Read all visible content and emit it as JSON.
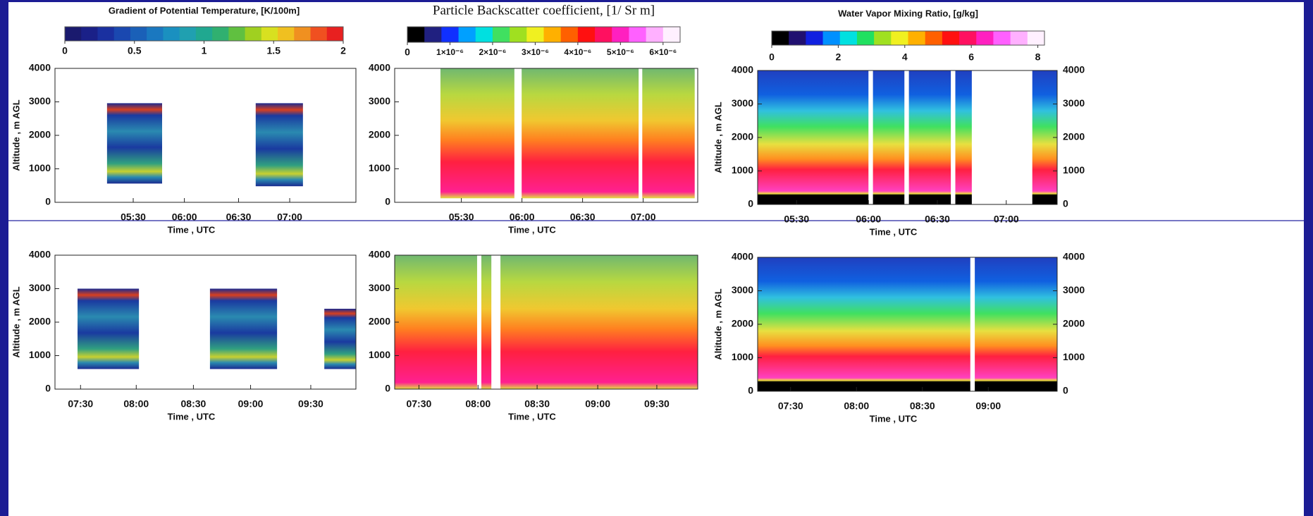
{
  "chart_data": [
    {
      "type": "heatmap",
      "colorbar": {
        "title": "Gradient of Potential Temperature, [K/100m]",
        "lim": [
          0,
          2
        ],
        "ticks": [
          0,
          0.5,
          1,
          1.5,
          2
        ],
        "colors": [
          "#1a1a6e",
          "#1a2088",
          "#1a30a0",
          "#1a48b0",
          "#1a60b8",
          "#1a78c0",
          "#1a90c0",
          "#20a0b0",
          "#20a890",
          "#30b070",
          "#60c040",
          "#a0d020",
          "#d8e020",
          "#f0c020",
          "#f09020",
          "#f05020",
          "#e82020"
        ]
      },
      "ylabel": "Altitude , m AGL",
      "xlabel": "Time , UTC",
      "ylim": [
        0,
        4000
      ],
      "yticks": [
        0,
        1000,
        2000,
        3000,
        4000
      ],
      "xticks": [
        "05:30",
        "06:00",
        "06:30",
        "07:00"
      ]
    },
    {
      "type": "heatmap",
      "colorbar": {
        "title": "Particle Backscatter coefficient, [1/ Sr m]",
        "lim": [
          0,
          6.4e-06
        ],
        "ticks": [
          0,
          {
            "value": 1e-06,
            "label": "1×10⁻⁶"
          },
          {
            "value": 2e-06,
            "label": "2×10⁻⁶"
          },
          {
            "value": 3e-06,
            "label": "3×10⁻⁶"
          },
          {
            "value": 4e-06,
            "label": "4×10⁻⁶"
          },
          {
            "value": 5e-06,
            "label": "5×10⁻⁶"
          },
          {
            "value": 6e-06,
            "label": "6×10⁻⁶"
          }
        ],
        "colors": [
          "#000000",
          "#202080",
          "#1030ff",
          "#00a0ff",
          "#00e0e0",
          "#40e060",
          "#a0e020",
          "#f0f020",
          "#ffb000",
          "#ff6000",
          "#ff1010",
          "#ff1060",
          "#ff20c0",
          "#ff60ff",
          "#ffb0ff",
          "#fff0ff"
        ]
      },
      "xlabel": "Time , UTC",
      "ylim": [
        0,
        4000
      ],
      "yticks": [
        0,
        1000,
        2000,
        3000,
        4000
      ],
      "xticks": [
        "05:30",
        "06:00",
        "06:30",
        "07:00"
      ]
    },
    {
      "type": "heatmap",
      "colorbar": {
        "title": "Water Vapor Mixing Ratio, [g/kg]",
        "lim": [
          0,
          8.2
        ],
        "ticks": [
          0,
          2,
          4,
          6,
          8
        ],
        "colors": [
          "#000000",
          "#201070",
          "#1020e0",
          "#0090ff",
          "#00e0e0",
          "#20e060",
          "#a0e020",
          "#f0f020",
          "#ffb000",
          "#ff6000",
          "#ff1010",
          "#ff1060",
          "#ff20c0",
          "#ff60ff",
          "#ffb0ff",
          "#fff0ff"
        ]
      },
      "ylabel": "Altitude , m AGL",
      "xlabel": "Time , UTC",
      "ylim": [
        0,
        4000
      ],
      "yticks": [
        0,
        1000,
        2000,
        3000,
        4000
      ],
      "y2lim": [
        0,
        4000
      ],
      "y2ticks": [
        0,
        1000,
        2000,
        3000,
        4000
      ],
      "xticks": [
        "05:30",
        "06:00",
        "06:30",
        "07:00"
      ]
    },
    {
      "type": "heatmap",
      "ylabel": "Altitude , m AGL",
      "xlabel": "Time , UTC",
      "ylim": [
        0,
        4000
      ],
      "yticks": [
        0,
        1000,
        2000,
        3000,
        4000
      ],
      "xticks": [
        "07:30",
        "08:00",
        "08:30",
        "09:00",
        "09:30"
      ]
    },
    {
      "type": "heatmap",
      "xlabel": "Time , UTC",
      "ylim": [
        0,
        4000
      ],
      "yticks": [
        0,
        1000,
        2000,
        3000,
        4000
      ],
      "xticks": [
        "07:30",
        "08:00",
        "08:30",
        "09:00",
        "09:30"
      ]
    },
    {
      "type": "heatmap",
      "ylabel": "Altitude , m AGL",
      "xlabel": "Time , UTC",
      "ylim": [
        0,
        4000
      ],
      "yticks": [
        0,
        1000,
        2000,
        3000,
        4000
      ],
      "y2lim": [
        0,
        4000
      ],
      "y2ticks": [
        0,
        1000,
        2000,
        3000,
        4000
      ],
      "xticks": [
        "07:30",
        "08:00",
        "08:30",
        "09:00"
      ]
    }
  ]
}
